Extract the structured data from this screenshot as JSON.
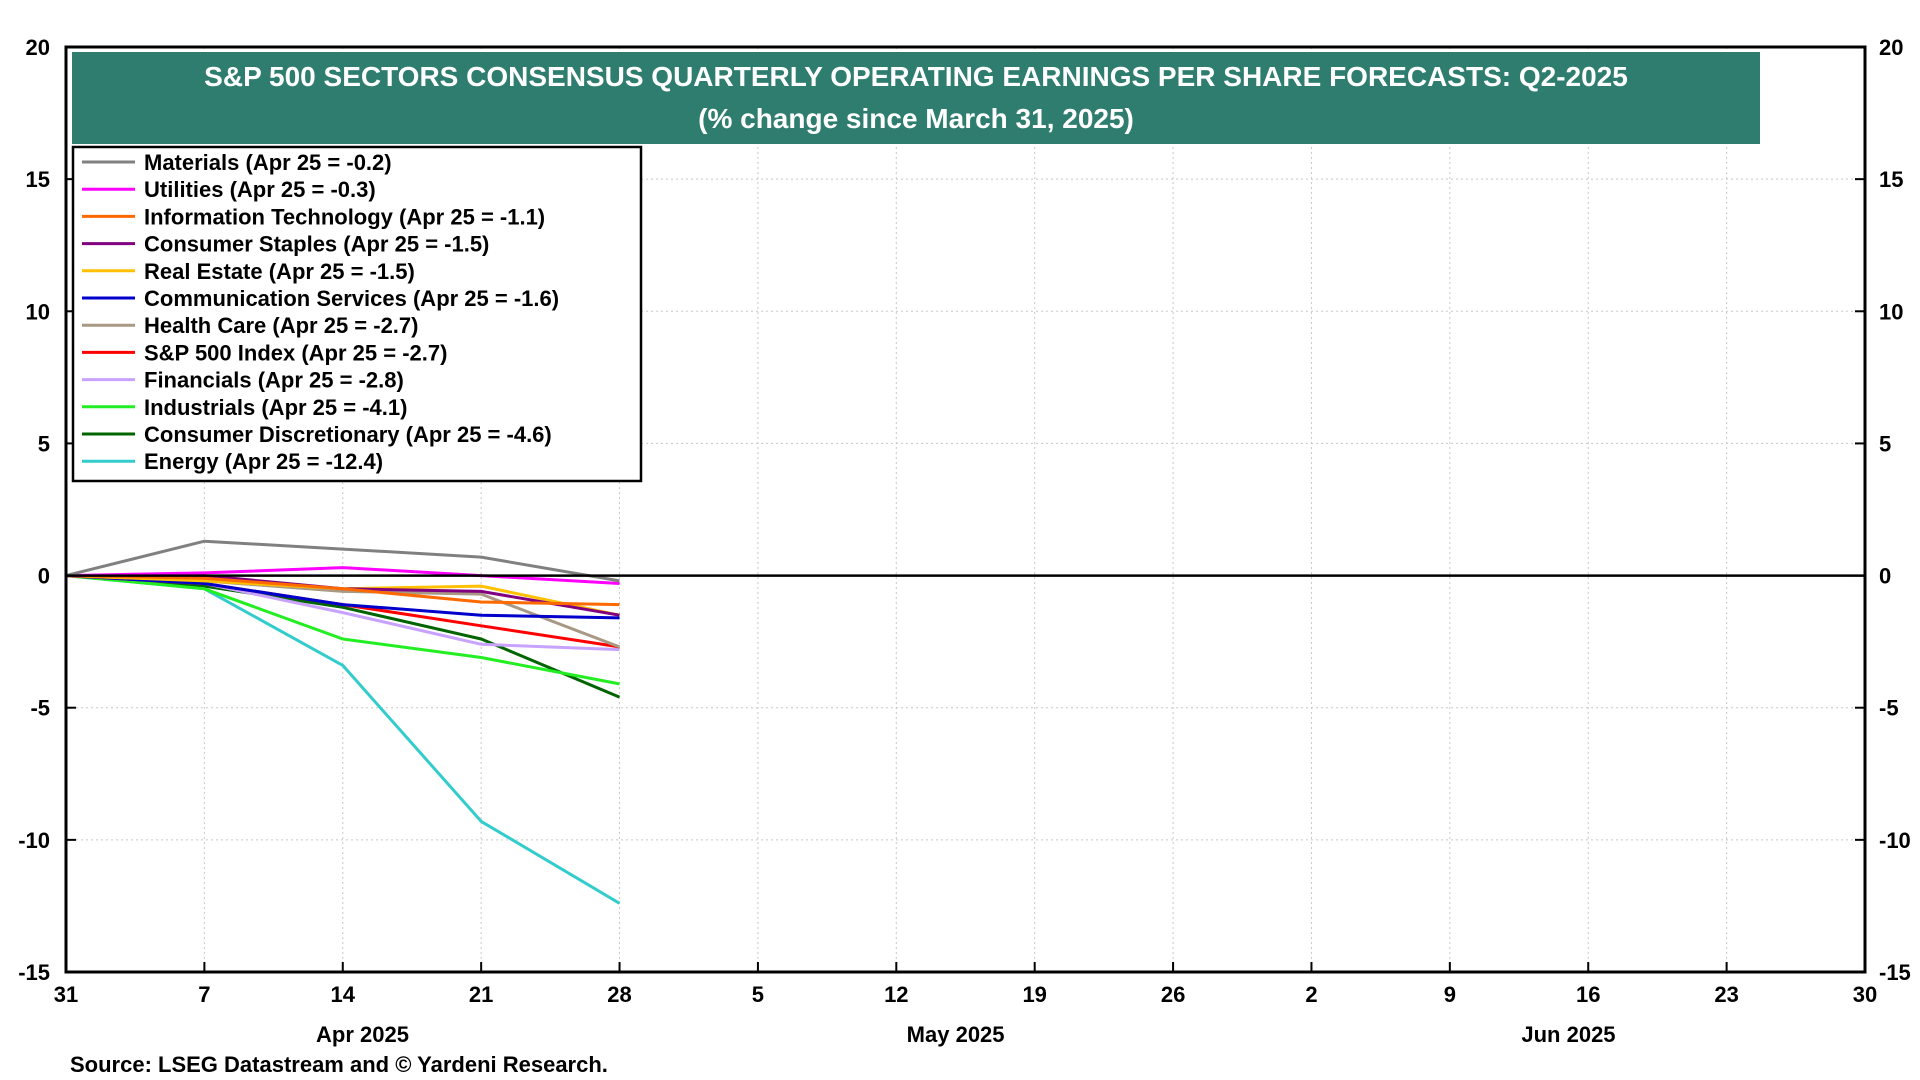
{
  "chart_data": {
    "type": "line",
    "title": "S&P 500 SECTORS CONSENSUS QUARTERLY OPERATING EARNINGS PER SHARE FORECASTS: Q2-2025",
    "subtitle": "(% change since March 31, 2025)",
    "source": "Source: LSEG Datastream and © Yardeni Research.",
    "title_bg_color": "#2E7D6F",
    "ylim": [
      -15,
      20
    ],
    "yticks": [
      20,
      15,
      10,
      5,
      0,
      -5,
      -10,
      -15
    ],
    "ytick_labels": [
      "20",
      "15",
      "10",
      "5",
      "0",
      "-5",
      "-10",
      "-15"
    ],
    "x_start": "2025-03-31",
    "x_end": "2025-06-30",
    "xticks": [
      {
        "date": "2025-03-31",
        "label": "31"
      },
      {
        "date": "2025-04-07",
        "label": "7"
      },
      {
        "date": "2025-04-14",
        "label": "14"
      },
      {
        "date": "2025-04-21",
        "label": "21"
      },
      {
        "date": "2025-04-28",
        "label": "28"
      },
      {
        "date": "2025-05-05",
        "label": "5"
      },
      {
        "date": "2025-05-12",
        "label": "12"
      },
      {
        "date": "2025-05-19",
        "label": "19"
      },
      {
        "date": "2025-05-26",
        "label": "26"
      },
      {
        "date": "2025-06-02",
        "label": "2"
      },
      {
        "date": "2025-06-09",
        "label": "9"
      },
      {
        "date": "2025-06-16",
        "label": "16"
      },
      {
        "date": "2025-06-23",
        "label": "23"
      },
      {
        "date": "2025-06-30",
        "label": "30"
      }
    ],
    "month_labels": [
      {
        "date": "2025-04-15",
        "label": "Apr 2025"
      },
      {
        "date": "2025-05-15",
        "label": "May 2025"
      },
      {
        "date": "2025-06-15",
        "label": "Jun 2025"
      }
    ],
    "grid": true,
    "zero_line": true,
    "legend_position": "top-left",
    "x": [
      "2025-03-31",
      "2025-04-07",
      "2025-04-14",
      "2025-04-21",
      "2025-04-28"
    ],
    "series": [
      {
        "name": "Materials (Apr 25 = -0.2)",
        "color": "#808080",
        "values": [
          0,
          1.3,
          1.0,
          0.7,
          -0.2
        ]
      },
      {
        "name": "Utilities (Apr 25 = -0.3)",
        "color": "#FF00FF",
        "values": [
          0,
          0.1,
          0.3,
          0.0,
          -0.3
        ]
      },
      {
        "name": "Information Technology (Apr 25 = -1.1)",
        "color": "#FF6A00",
        "values": [
          0,
          -0.1,
          -0.5,
          -1.0,
          -1.1
        ]
      },
      {
        "name": "Consumer Staples (Apr 25 = -1.5)",
        "color": "#800080",
        "values": [
          0,
          0.0,
          -0.5,
          -0.6,
          -1.5
        ]
      },
      {
        "name": "Real Estate (Apr 25 = -1.5)",
        "color": "#FFC000",
        "values": [
          0,
          -0.2,
          -0.5,
          -0.4,
          -1.5
        ]
      },
      {
        "name": "Communication Services (Apr 25 = -1.6)",
        "color": "#0000CC",
        "values": [
          0,
          -0.3,
          -1.1,
          -1.5,
          -1.6
        ]
      },
      {
        "name": "Health Care (Apr 25 = -2.7)",
        "color": "#A89884",
        "values": [
          0,
          -0.2,
          -0.6,
          -0.7,
          -2.7
        ]
      },
      {
        "name": "S&P 500 Index (Apr 25 = -2.7)",
        "color": "#FF0000",
        "values": [
          0,
          -0.3,
          -1.1,
          -1.9,
          -2.7
        ]
      },
      {
        "name": "Financials (Apr 25 = -2.8)",
        "color": "#C8A2FF",
        "values": [
          0,
          -0.3,
          -1.4,
          -2.6,
          -2.8
        ]
      },
      {
        "name": "Industrials (Apr 25 = -4.1)",
        "color": "#22EE22",
        "values": [
          0,
          -0.5,
          -2.4,
          -3.1,
          -4.1
        ]
      },
      {
        "name": "Consumer Discretionary (Apr 25 = -4.6)",
        "color": "#006400",
        "values": [
          0,
          -0.4,
          -1.2,
          -2.4,
          -4.6
        ]
      },
      {
        "name": "Energy (Apr 25 = -12.4)",
        "color": "#33CCCC",
        "values": [
          0,
          -0.5,
          -3.4,
          -9.3,
          -12.4
        ]
      }
    ]
  }
}
